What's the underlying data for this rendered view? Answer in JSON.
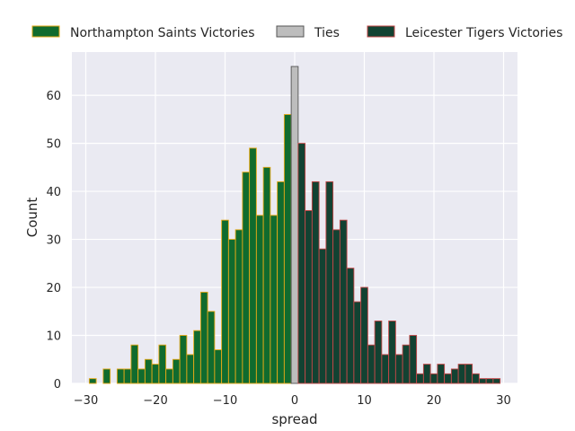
{
  "chart_data": {
    "type": "bar",
    "xlabel": "spread",
    "ylabel": "Count",
    "xlim": [
      -32,
      32
    ],
    "ylim": [
      0,
      69
    ],
    "xticks": [
      -30,
      -20,
      -10,
      0,
      10,
      20,
      30
    ],
    "yticks": [
      0,
      10,
      20,
      30,
      40,
      50,
      60
    ],
    "grid": true,
    "legend_position": "top",
    "background": "#eaeaf2",
    "series": [
      {
        "name": "Northampton Saints Victories",
        "fill": "#106b2e",
        "edge": "#e6a817",
        "x": [
          -29,
          -28,
          -27,
          -26,
          -25,
          -24,
          -23,
          -22,
          -21,
          -20,
          -19,
          -18,
          -17,
          -16,
          -15,
          -14,
          -13,
          -12,
          -11,
          -10,
          -9,
          -8,
          -7,
          -6,
          -5,
          -4,
          -3,
          -2,
          -1
        ],
        "values": [
          1,
          0,
          3,
          0,
          3,
          3,
          8,
          3,
          5,
          4,
          8,
          3,
          5,
          10,
          6,
          11,
          19,
          15,
          7,
          34,
          30,
          32,
          44,
          49,
          35,
          45,
          35,
          42,
          56
        ]
      },
      {
        "name": "Ties",
        "fill": "#bdbdbd",
        "edge": "#555555",
        "x": [
          0
        ],
        "values": [
          66
        ]
      },
      {
        "name": "Leicester Tigers Victories",
        "fill": "#124232",
        "edge": "#c44848",
        "x": [
          1,
          2,
          3,
          4,
          5,
          6,
          7,
          8,
          9,
          10,
          11,
          12,
          13,
          14,
          15,
          16,
          17,
          18,
          19,
          20,
          21,
          22,
          23,
          24,
          25,
          26,
          27,
          28,
          29
        ],
        "values": [
          50,
          36,
          42,
          28,
          42,
          32,
          34,
          24,
          17,
          20,
          8,
          13,
          6,
          13,
          6,
          8,
          10,
          2,
          4,
          2,
          4,
          2,
          3,
          4,
          4,
          2,
          1,
          1,
          1
        ]
      }
    ]
  }
}
